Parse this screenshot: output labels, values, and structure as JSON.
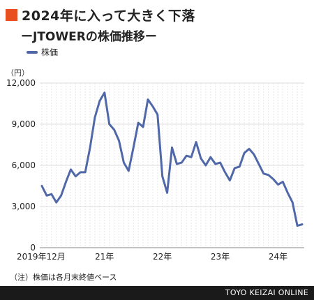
{
  "header": {
    "title": "2024年に入って大きく下落",
    "subtitle": "ーJTOWERの株価推移ー"
  },
  "legend": {
    "label": "株価"
  },
  "unit": "（円）",
  "note": "（注）株価は各月末終値ベース",
  "credit": "TOYO KEIZAI ONLINE",
  "colors": {
    "line": "#5068a8",
    "accent": "#e8501f",
    "grid": "#dcdcdc"
  },
  "chart_data": {
    "type": "line",
    "ylim": [
      0,
      12000
    ],
    "yticks": [
      0,
      3000,
      6000,
      9000,
      12000
    ],
    "ytick_labels": [
      "0",
      "3,000",
      "6,000",
      "9,000",
      "12,000"
    ],
    "xtick_labels": [
      {
        "index": 0,
        "label": "2019年12月"
      },
      {
        "index": 13,
        "label": "21年"
      },
      {
        "index": 25,
        "label": "22年"
      },
      {
        "index": 37,
        "label": "23年"
      },
      {
        "index": 49,
        "label": "24年"
      }
    ],
    "grid": true,
    "series": [
      {
        "name": "株価",
        "values": [
          4500,
          3800,
          3900,
          3300,
          3800,
          4800,
          5700,
          5200,
          5500,
          5500,
          7300,
          9500,
          10700,
          11300,
          9000,
          8600,
          7800,
          6200,
          5600,
          7300,
          9100,
          8800,
          10800,
          10300,
          9700,
          5200,
          4000,
          7300,
          6100,
          6200,
          6700,
          6600,
          7700,
          6500,
          6000,
          6600,
          6100,
          6200,
          5500,
          4900,
          5800,
          5900,
          6900,
          7200,
          6800,
          6100,
          5400,
          5300,
          5000,
          4600,
          4800,
          4000,
          3300,
          1600,
          1700
        ]
      }
    ]
  }
}
